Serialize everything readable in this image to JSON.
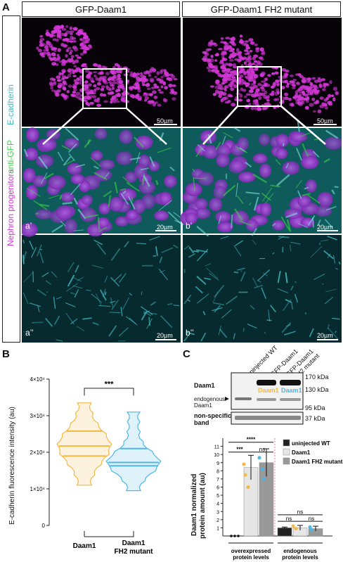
{
  "panelA": {
    "letter": "A",
    "col1": "GFP-Daam1",
    "col2": "GFP-Daam1 FH2 mutant",
    "side_label_1": "Nephron progenitors",
    "side_label_2": "anti-GFP",
    "side_label_3": "E-cadherin",
    "scale_top": "50µm",
    "scale_mid": "20µm",
    "scale_bot": "20µm",
    "sub_a1": "a’",
    "sub_b1": "b’",
    "sub_a2": "a’’",
    "sub_b2": "b’’",
    "colors": {
      "magenta": "#d236d6",
      "green": "#3fd04a",
      "cyan": "#3fb8c0"
    }
  },
  "panelB": {
    "letter": "B",
    "ylabel": "E-cadherin fluorescence intensity (au)",
    "significance": "***",
    "chart_data": {
      "type": "violin",
      "categories": [
        "Daam1",
        "Daam1 FH2 mutant"
      ],
      "ylabel": "E-cadherin fluorescence intensity (au)",
      "ylim": [
        0,
        40000
      ],
      "yticks": [
        {
          "v": 0,
          "label": "0"
        },
        {
          "v": 10000,
          "label": "1×10⁴"
        },
        {
          "v": 20000,
          "label": "2×10⁴"
        },
        {
          "v": 30000,
          "label": "3×10⁴"
        },
        {
          "v": 40000,
          "label": "4×10⁴"
        }
      ],
      "series": [
        {
          "category": "Daam1",
          "color": "#f4b942",
          "min": 11000,
          "max": 33500,
          "q1": 19000,
          "median": 21700,
          "q3": 25800
        },
        {
          "category": "Daam1 FH2 mutant",
          "color": "#4db8e6",
          "min": 9500,
          "max": 31000,
          "q1": 16300,
          "median": 17200,
          "q3": 21000
        }
      ],
      "labels": [
        "Daam1",
        "Daam1\nFH2 mutant"
      ]
    }
  },
  "panelC": {
    "letter": "C",
    "blot": {
      "lanes": [
        "uninjected WT",
        "GFP-Daam1",
        "GFP-Daam1 FH2 mutant"
      ],
      "lane3_line1": "GFP-Daam1",
      "lane3_line2": "FH2 mutant",
      "row_label": "Daam1",
      "endogenous": "endogenous",
      "endogenous2": "Daam1",
      "nonspecific1": "non-specific",
      "nonspecific2": "band",
      "band_lane2": "Daam1",
      "band_lane3": "Daam1",
      "markers": [
        "170 kDa",
        "130 kDa",
        "95 kDa",
        "37 kDa"
      ]
    },
    "chart_data": {
      "type": "bar",
      "ylabel_1": "Daam1 normalized",
      "ylabel_2": "protein amount (au)",
      "ylim": [
        0,
        12
      ],
      "yticks": [
        1,
        2,
        3,
        4,
        5,
        6,
        7,
        8,
        9,
        10,
        11
      ],
      "groups": [
        {
          "label_1": "overexpressed",
          "label_2": "protein levels",
          "values": [
            0,
            8.4,
            9.0
          ],
          "errors": [
            0,
            1.5,
            1.7
          ]
        },
        {
          "label_1": "endogenous",
          "label_2": "protein levels",
          "values": [
            1.0,
            1.0,
            0.9
          ],
          "errors": [
            0.1,
            0.3,
            0.3
          ]
        }
      ],
      "series": [
        {
          "name": "uninjected WT",
          "color": "#222222"
        },
        {
          "name": "Daam1",
          "color": "#e6e6e6"
        },
        {
          "name": "Daam1 FH2 mutant",
          "color": "#999999"
        }
      ],
      "stats": {
        "top": "****",
        "left": "***",
        "right": "ns",
        "endo_top": "ns",
        "endo_left": "ns",
        "endo_right": "ns"
      }
    }
  }
}
